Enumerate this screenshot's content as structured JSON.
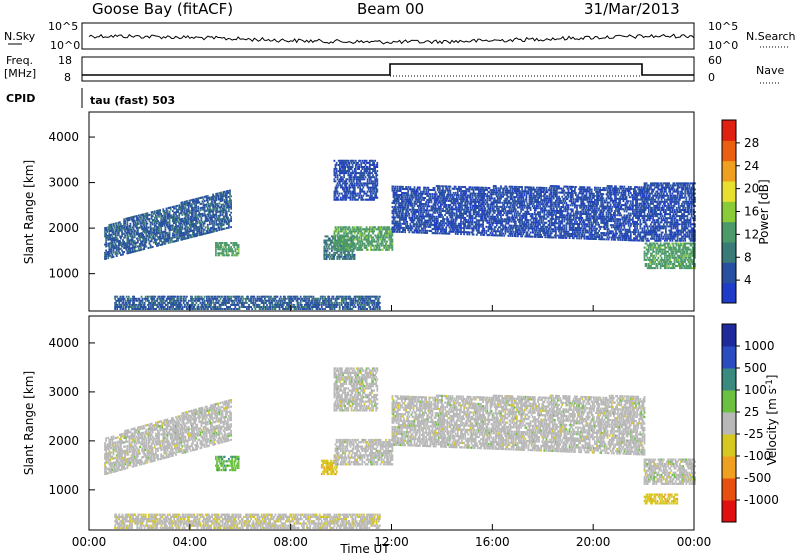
{
  "header": {
    "station": "Goose Bay (fitACF)",
    "beam": "Beam 00",
    "date": "31/Mar/2013"
  },
  "noise_panel": {
    "left_label": "N.Sky",
    "right_label": "N.Search",
    "left_ticks": [
      "10^5",
      "10^0"
    ],
    "right_ticks": [
      "10^5",
      "10^0"
    ]
  },
  "freq_panel": {
    "left_label_line1": "Freq.",
    "left_label_line2": "[MHz]",
    "left_ticks": [
      "18",
      "8"
    ],
    "right_label": "Nave",
    "right_ticks": [
      "60",
      "0"
    ],
    "cpid_label": "CPID",
    "cpid_value": "tau (fast) 503"
  },
  "time_axis": {
    "label": "Time UT",
    "ticks": [
      "00:00",
      "04:00",
      "08:00",
      "12:00",
      "16:00",
      "20:00",
      "00:00"
    ]
  },
  "colors": {
    "power": [
      "#1e3cc8",
      "#2850a0",
      "#3a7a78",
      "#4c9a6a",
      "#8acb3a",
      "#e8e030",
      "#f0a020",
      "#e86010",
      "#e02010"
    ],
    "velocity": [
      "#1e2a9c",
      "#2a4cc0",
      "#3a8a80",
      "#6cc040",
      "#b8b8b8",
      "#d6c820",
      "#f0a020",
      "#e85010",
      "#e01010"
    ]
  },
  "chart_data": [
    {
      "type": "heatmap",
      "panel": "power",
      "ylabel": "Slant Range [km]",
      "xlabel": "",
      "y_ticks": [
        "1000",
        "2000",
        "3000",
        "4000"
      ],
      "ylim": [
        180,
        4550
      ],
      "xlim_hours": [
        0,
        24
      ],
      "colorbar_label": "Power [dB]",
      "colorbar_ticks": [
        "4",
        "8",
        "12",
        "16",
        "20",
        "24",
        "28"
      ],
      "colorbar_range": [
        0,
        30
      ],
      "echo_bands": [
        {
          "t0": 0.6,
          "t1": 5.6,
          "r0": 1300,
          "r1": 2050,
          "r0_end": 2000,
          "r1_end": 2850,
          "value": 6
        },
        {
          "t0": 5.0,
          "t1": 5.9,
          "r0": 1380,
          "r1": 1680,
          "value": 12
        },
        {
          "t0": 9.3,
          "t1": 10.5,
          "r0": 1300,
          "r1": 1800,
          "value": 8
        },
        {
          "t0": 9.7,
          "t1": 12.0,
          "r0": 1500,
          "r1": 2000,
          "value": 12
        },
        {
          "t0": 9.7,
          "t1": 11.4,
          "r0": 2600,
          "r1": 3500,
          "value": 4
        },
        {
          "t0": 12.0,
          "t1": 22.0,
          "r0": 1900,
          "r1": 2900,
          "r0_end": 1700,
          "r1_end": 2900,
          "value": 4
        },
        {
          "t0": 22.0,
          "t1": 24.0,
          "r0": 1100,
          "r1": 1650,
          "value": 12
        },
        {
          "t0": 22.0,
          "t1": 24.0,
          "r0": 1700,
          "r1": 3000,
          "value": 4
        },
        {
          "t0": 1.0,
          "t1": 11.5,
          "r0": 200,
          "r1": 480,
          "value": 6
        }
      ]
    },
    {
      "type": "heatmap",
      "panel": "velocity",
      "ylabel": "Slant Range [km]",
      "xlabel": "Time UT",
      "y_ticks": [
        "1000",
        "2000",
        "3000",
        "4000"
      ],
      "ylim": [
        180,
        4550
      ],
      "xlim_hours": [
        0,
        24
      ],
      "colorbar_label": "Velocity [m s",
      "colorbar_label_sup": "-1",
      "colorbar_ticks": [
        "1000",
        "500",
        "100",
        "25",
        "-25",
        "-100",
        "-500",
        "-1000"
      ],
      "colorbar_range": [
        -1200,
        1200
      ],
      "echo_bands": [
        {
          "t0": 0.6,
          "t1": 5.6,
          "r0": 1300,
          "r1": 2050,
          "r0_end": 2000,
          "r1_end": 2850,
          "value": 0
        },
        {
          "t0": 5.0,
          "t1": 5.9,
          "r0": 1380,
          "r1": 1680,
          "value": 300
        },
        {
          "t0": 9.2,
          "t1": 9.8,
          "r0": 1300,
          "r1": 1600,
          "value": -300
        },
        {
          "t0": 9.7,
          "t1": 12.0,
          "r0": 1500,
          "r1": 2000,
          "value": 0
        },
        {
          "t0": 9.7,
          "t1": 11.4,
          "r0": 2600,
          "r1": 3500,
          "value": 0
        },
        {
          "t0": 12.0,
          "t1": 22.0,
          "r0": 1900,
          "r1": 2900,
          "r0_end": 1700,
          "r1_end": 2900,
          "value": 0
        },
        {
          "t0": 22.0,
          "t1": 24.0,
          "r0": 1100,
          "r1": 1600,
          "value": 0
        },
        {
          "t0": 22.0,
          "t1": 23.3,
          "r0": 700,
          "r1": 900,
          "value": -300
        },
        {
          "t0": 1.0,
          "t1": 11.5,
          "r0": 200,
          "r1": 480,
          "value": -50
        }
      ]
    }
  ]
}
